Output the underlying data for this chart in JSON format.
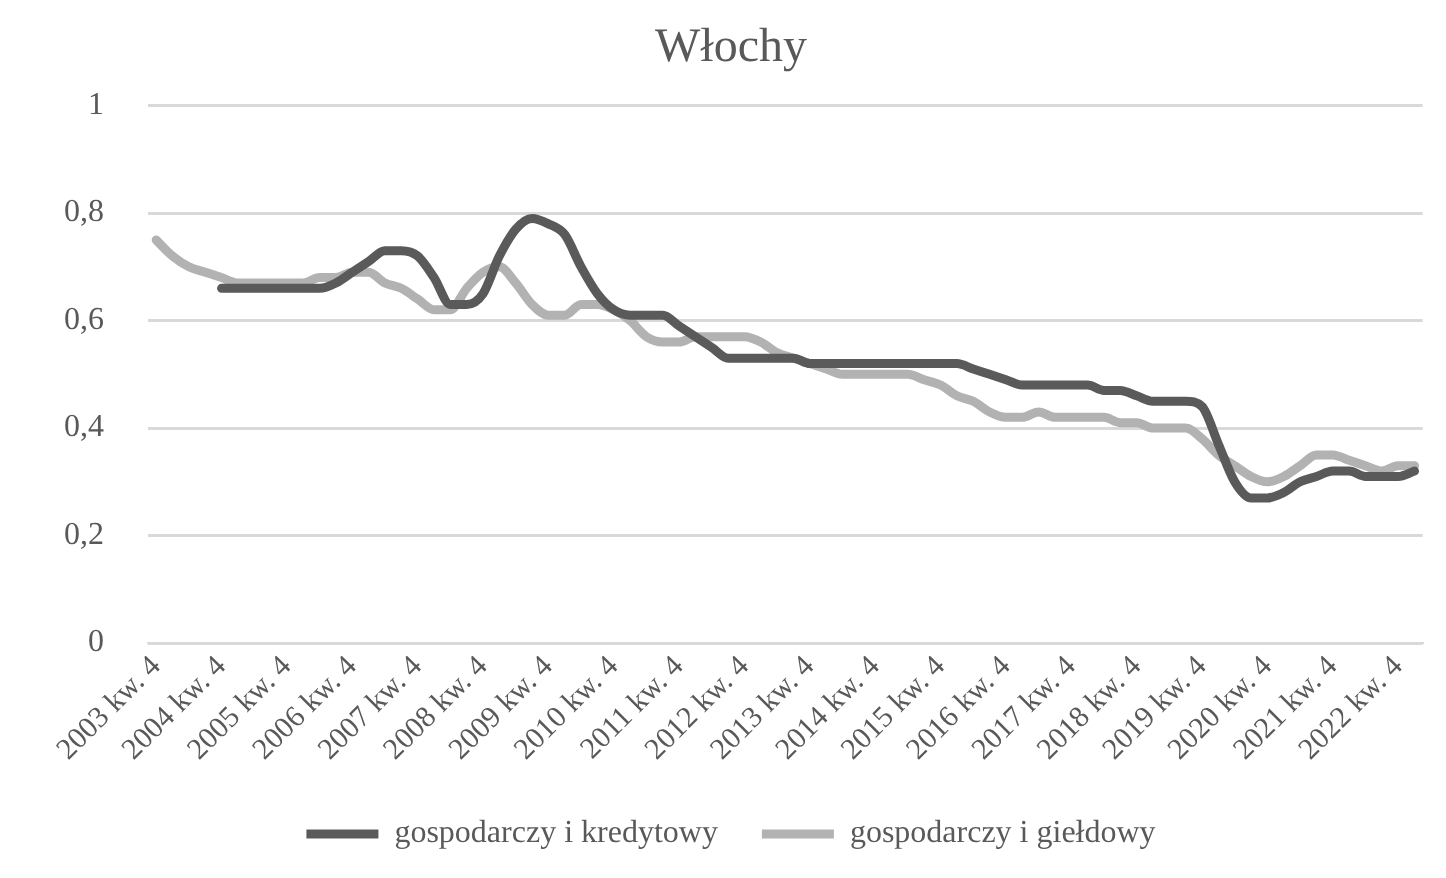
{
  "chart_data": {
    "type": "line",
    "title": "Włochy",
    "categories": [
      "2003 kw. 4",
      null,
      null,
      null,
      "2004 kw. 4",
      null,
      null,
      null,
      "2005 kw. 4",
      null,
      null,
      null,
      "2006 kw. 4",
      null,
      null,
      null,
      "2007 kw. 4",
      null,
      null,
      null,
      "2008 kw. 4",
      null,
      null,
      null,
      "2009 kw. 4",
      null,
      null,
      null,
      "2010 kw. 4",
      null,
      null,
      null,
      "2011 kw. 4",
      null,
      null,
      null,
      "2012 kw. 4",
      null,
      null,
      null,
      "2013 kw. 4",
      null,
      null,
      null,
      "2014 kw. 4",
      null,
      null,
      null,
      "2015 kw. 4",
      null,
      null,
      null,
      "2016 kw. 4",
      null,
      null,
      null,
      "2017 kw. 4",
      null,
      null,
      null,
      "2018 kw. 4",
      null,
      null,
      null,
      "2019 kw. 4",
      null,
      null,
      null,
      "2020 kw. 4",
      null,
      null,
      null,
      "2021 kw. 4",
      null,
      null,
      null,
      "2022 kw. 4",
      null
    ],
    "series": [
      {
        "name": "gospodarczy i kredytowy",
        "color": "#5a5a5a",
        "values": [
          null,
          null,
          null,
          null,
          0.66,
          0.66,
          0.66,
          0.66,
          0.66,
          0.66,
          0.66,
          0.67,
          0.69,
          0.71,
          0.73,
          0.73,
          0.72,
          0.68,
          0.63,
          0.63,
          0.65,
          0.72,
          0.77,
          0.79,
          0.78,
          0.76,
          0.7,
          0.65,
          0.62,
          0.61,
          0.61,
          0.61,
          0.59,
          0.57,
          0.55,
          0.53,
          0.53,
          0.53,
          0.53,
          0.53,
          0.52,
          0.52,
          0.52,
          0.52,
          0.52,
          0.52,
          0.52,
          0.52,
          0.52,
          0.52,
          0.51,
          0.5,
          0.49,
          0.48,
          0.48,
          0.48,
          0.48,
          0.48,
          0.47,
          0.47,
          0.46,
          0.45,
          0.45,
          0.45,
          0.44,
          0.37,
          0.3,
          0.27,
          0.27,
          0.28,
          0.3,
          0.31,
          0.32,
          0.32,
          0.31,
          0.31,
          0.31,
          0.32
        ]
      },
      {
        "name": "gospodarczy i giełdowy",
        "color": "#b2b2b2",
        "values": [
          0.75,
          0.72,
          0.7,
          0.69,
          0.68,
          0.67,
          0.67,
          0.67,
          0.67,
          0.67,
          0.68,
          0.68,
          0.69,
          0.69,
          0.67,
          0.66,
          0.64,
          0.62,
          0.62,
          0.66,
          0.69,
          0.7,
          0.67,
          0.63,
          0.61,
          0.61,
          0.63,
          0.63,
          0.62,
          0.6,
          0.57,
          0.56,
          0.56,
          0.57,
          0.57,
          0.57,
          0.57,
          0.56,
          0.54,
          0.53,
          0.52,
          0.51,
          0.5,
          0.5,
          0.5,
          0.5,
          0.5,
          0.49,
          0.48,
          0.46,
          0.45,
          0.43,
          0.42,
          0.42,
          0.43,
          0.42,
          0.42,
          0.42,
          0.42,
          0.41,
          0.41,
          0.4,
          0.4,
          0.4,
          0.38,
          0.35,
          0.33,
          0.31,
          0.3,
          0.31,
          0.33,
          0.35,
          0.35,
          0.34,
          0.33,
          0.32,
          0.33,
          0.33
        ]
      }
    ],
    "ylim": [
      0,
      1
    ],
    "yticks": [
      0,
      {
        "value": 0.2,
        "label": "0,2"
      },
      {
        "value": 0.4,
        "label": "0,4"
      },
      {
        "value": 0.6,
        "label": "0,6"
      },
      {
        "value": 0.8,
        "label": "0,8"
      },
      1
    ],
    "grid": "y",
    "legend": "bottom",
    "marker": "none",
    "line_style": "solid"
  }
}
